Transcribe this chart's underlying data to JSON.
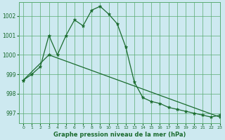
{
  "title": "Graphe pression niveau de la mer (hPa)",
  "background_color": "#cde9f0",
  "grid_color": "#5aab72",
  "line_color": "#1a6b2e",
  "xlim": [
    -0.5,
    23
  ],
  "ylim": [
    996.5,
    1002.7
  ],
  "yticks": [
    997,
    998,
    999,
    1000,
    1001,
    1002
  ],
  "xticks": [
    0,
    1,
    2,
    3,
    4,
    5,
    6,
    7,
    8,
    9,
    10,
    11,
    12,
    13,
    14,
    15,
    16,
    17,
    18,
    19,
    20,
    21,
    22,
    23
  ],
  "series1_x": [
    0,
    1,
    2,
    3,
    4,
    5,
    6,
    7,
    8,
    9,
    10,
    11,
    12,
    13,
    14,
    15,
    16,
    17,
    18,
    19,
    20,
    21,
    22,
    23
  ],
  "series1_y": [
    998.7,
    999.0,
    999.4,
    1001.0,
    1000.0,
    1001.0,
    1001.8,
    1001.5,
    1002.3,
    1002.5,
    1002.1,
    1001.6,
    1000.4,
    998.6,
    997.8,
    997.6,
    997.5,
    997.3,
    997.2,
    997.1,
    997.0,
    996.9,
    996.8,
    996.9
  ],
  "series2_x": [
    0,
    3,
    23
  ],
  "series2_y": [
    998.7,
    1000.0,
    996.8
  ]
}
